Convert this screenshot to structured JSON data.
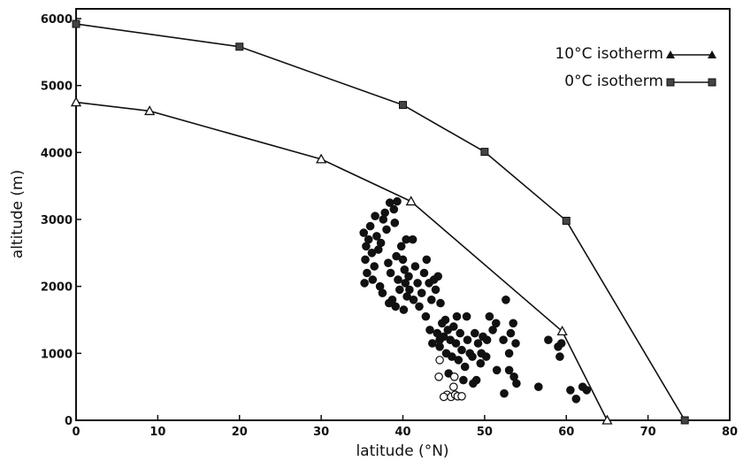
{
  "chart_data": {
    "type": "scatter",
    "title": "",
    "xlabel": "latitude (°N)",
    "ylabel": "altitude (m)",
    "xlim": [
      0,
      80
    ],
    "ylim": [
      0,
      6000
    ],
    "xticks": [
      "0",
      "10",
      "20",
      "30",
      "40",
      "50",
      "60",
      "70",
      "80"
    ],
    "yticks": [
      "0",
      "1000",
      "2000",
      "3000",
      "4000",
      "5000",
      "6000"
    ],
    "grid": false,
    "legend_position": "top-right",
    "series": [
      {
        "name": "10°C isotherm",
        "kind": "line",
        "marker": "triangle",
        "points": [
          [
            0,
            4750
          ],
          [
            9,
            4620
          ],
          [
            30,
            3900
          ],
          [
            41,
            3270
          ],
          [
            59.5,
            1330
          ],
          [
            65,
            0
          ]
        ]
      },
      {
        "name": "0°C isotherm",
        "kind": "line",
        "marker": "square",
        "points": [
          [
            0,
            5920
          ],
          [
            20,
            5580
          ],
          [
            40,
            4710
          ],
          [
            50,
            4010
          ],
          [
            60,
            2980
          ],
          [
            74.5,
            0
          ]
        ]
      },
      {
        "name": "",
        "kind": "scatter",
        "marker": "filled-circle",
        "points": [
          [
            35.2,
            2800
          ],
          [
            35.5,
            2600
          ],
          [
            35.4,
            2400
          ],
          [
            35.6,
            2200
          ],
          [
            35.3,
            2050
          ],
          [
            35.8,
            2700
          ],
          [
            36.0,
            2900
          ],
          [
            36.2,
            2500
          ],
          [
            36.5,
            2300
          ],
          [
            36.3,
            2100
          ],
          [
            36.8,
            2750
          ],
          [
            37.0,
            2550
          ],
          [
            37.2,
            2000
          ],
          [
            37.5,
            1900
          ],
          [
            37.3,
            2650
          ],
          [
            37.6,
            3000
          ],
          [
            38.0,
            2850
          ],
          [
            38.2,
            2350
          ],
          [
            38.5,
            2200
          ],
          [
            38.7,
            1800
          ],
          [
            38.3,
            1750
          ],
          [
            38.9,
            3150
          ],
          [
            39.0,
            2950
          ],
          [
            39.2,
            2450
          ],
          [
            39.4,
            2100
          ],
          [
            39.6,
            1950
          ],
          [
            39.1,
            1700
          ],
          [
            39.8,
            2600
          ],
          [
            40.0,
            2400
          ],
          [
            40.2,
            2250
          ],
          [
            40.3,
            2050
          ],
          [
            40.5,
            1850
          ],
          [
            40.1,
            1650
          ],
          [
            40.4,
            2700
          ],
          [
            40.7,
            2150
          ],
          [
            40.8,
            1950
          ],
          [
            38.4,
            3250
          ],
          [
            39.3,
            3270
          ],
          [
            37.8,
            3100
          ],
          [
            36.6,
            3050
          ],
          [
            41.2,
            2700
          ],
          [
            41.5,
            2300
          ],
          [
            41.8,
            2050
          ],
          [
            41.3,
            1800
          ],
          [
            42.0,
            1700
          ],
          [
            42.3,
            1900
          ],
          [
            42.6,
            2200
          ],
          [
            42.9,
            2400
          ],
          [
            43.2,
            2050
          ],
          [
            43.5,
            1800
          ],
          [
            43.8,
            2100
          ],
          [
            44.0,
            1950
          ],
          [
            44.3,
            2150
          ],
          [
            44.6,
            1750
          ],
          [
            42.8,
            1550
          ],
          [
            43.3,
            1350
          ],
          [
            43.6,
            1150
          ],
          [
            44.2,
            1300
          ],
          [
            44.5,
            1100
          ],
          [
            44.8,
            1450
          ],
          [
            45.0,
            1250
          ],
          [
            45.3,
            1000
          ],
          [
            45.5,
            1350
          ],
          [
            45.8,
            1200
          ],
          [
            46.0,
            950
          ],
          [
            46.2,
            1400
          ],
          [
            46.5,
            1150
          ],
          [
            46.8,
            900
          ],
          [
            47.0,
            1300
          ],
          [
            47.2,
            1050
          ],
          [
            47.6,
            800
          ],
          [
            47.9,
            1200
          ],
          [
            48.2,
            1000
          ],
          [
            48.5,
            950
          ],
          [
            48.8,
            1300
          ],
          [
            49.2,
            1150
          ],
          [
            49.5,
            850
          ],
          [
            49.8,
            1250
          ],
          [
            45.6,
            700
          ],
          [
            47.4,
            600
          ],
          [
            48.6,
            550
          ],
          [
            49.0,
            600
          ],
          [
            50.6,
            1550
          ],
          [
            51.0,
            1350
          ],
          [
            51.4,
            1450
          ],
          [
            50.3,
            1200
          ],
          [
            52.3,
            1200
          ],
          [
            53.0,
            1000
          ],
          [
            53.2,
            1300
          ],
          [
            53.5,
            1450
          ],
          [
            53.8,
            1150
          ],
          [
            52.6,
            1800
          ],
          [
            53.0,
            750
          ],
          [
            53.6,
            650
          ],
          [
            53.9,
            550
          ],
          [
            56.6,
            500
          ],
          [
            57.8,
            1200
          ],
          [
            59.0,
            1100
          ],
          [
            59.2,
            950
          ],
          [
            59.4,
            1150
          ],
          [
            60.5,
            450
          ],
          [
            61.2,
            320
          ],
          [
            62.0,
            500
          ],
          [
            62.5,
            450
          ],
          [
            52.4,
            400
          ],
          [
            44.5,
            1200
          ],
          [
            45.2,
            1500
          ],
          [
            46.6,
            1550
          ],
          [
            47.8,
            1550
          ],
          [
            51.5,
            750
          ],
          [
            50.2,
            950
          ],
          [
            49.6,
            1000
          ]
        ]
      },
      {
        "name": "",
        "kind": "scatter",
        "marker": "open-circle",
        "points": [
          [
            44.5,
            900
          ],
          [
            44.4,
            650
          ],
          [
            45.4,
            380
          ],
          [
            45.9,
            350
          ],
          [
            46.2,
            500
          ],
          [
            46.4,
            380
          ],
          [
            46.7,
            360
          ],
          [
            47.2,
            360
          ],
          [
            46.3,
            650
          ],
          [
            45.0,
            350
          ]
        ]
      }
    ]
  }
}
